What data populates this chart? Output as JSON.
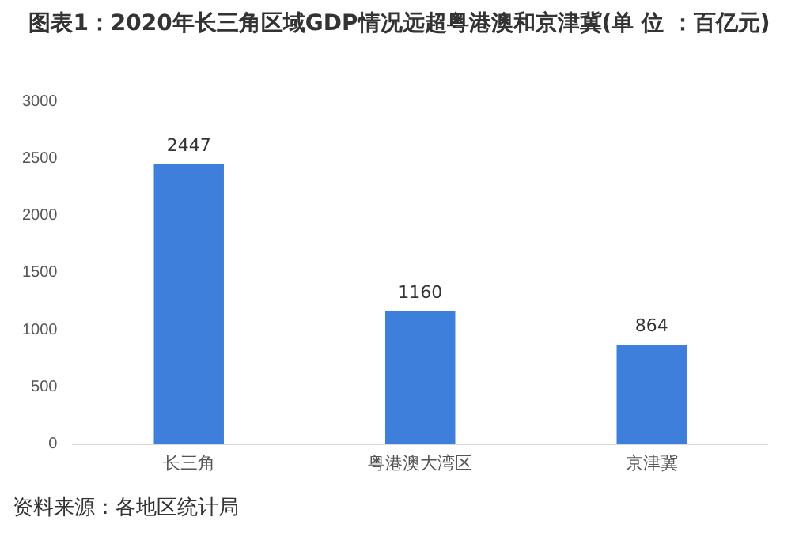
{
  "chart_data": {
    "type": "bar",
    "title": "图表1：2020年长三角区域GDP情况远超粤港澳和京津冀(单 位 ：百亿元)",
    "categories": [
      "长三角",
      "粤港澳大湾区",
      "京津冀"
    ],
    "values": [
      2447,
      1160,
      864
    ],
    "color": "#3f7fdc",
    "ylim": [
      0,
      3000
    ],
    "yticks": [
      0,
      500,
      1000,
      1500,
      2000,
      2500,
      3000
    ],
    "grid": false,
    "legend": false,
    "data_labels": true,
    "annotations": [
      "资料来源：各地区统计局"
    ]
  }
}
